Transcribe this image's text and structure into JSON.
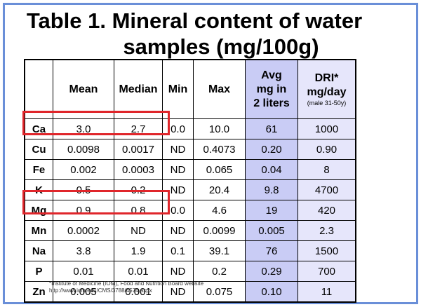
{
  "title": {
    "line1": "Table 1. Mineral content of water",
    "line2": "samples (mg/100g)"
  },
  "table": {
    "headers": [
      "",
      "Mean",
      "Median",
      "Min",
      "Max",
      "Avg mg in 2 liters",
      "DRI* mg/day"
    ],
    "avg_header": {
      "l1": "Avg",
      "l2": "mg in",
      "l3": "2 liters"
    },
    "dri_header": {
      "l1": "DRI*",
      "l2": "mg/day",
      "l3": "(male 31-50y)"
    },
    "rows": [
      {
        "el": "Ca",
        "mean": "3.0",
        "median": "2.7",
        "min": "0.0",
        "max": "10.0",
        "avg": "61",
        "dri": "1000"
      },
      {
        "el": "Cu",
        "mean": "0.0098",
        "median": "0.0017",
        "min": "ND",
        "max": "0.4073",
        "avg": "0.20",
        "dri": "0.90"
      },
      {
        "el": "Fe",
        "mean": "0.002",
        "median": "0.0003",
        "min": "ND",
        "max": "0.065",
        "avg": "0.04",
        "dri": "8"
      },
      {
        "el": "K",
        "mean": "0.5",
        "median": "0.2",
        "min": "ND",
        "max": "20.4",
        "avg": "9.8",
        "dri": "4700"
      },
      {
        "el": "Mg",
        "mean": "0.9",
        "median": "0.8",
        "min": "0.0",
        "max": "4.6",
        "avg": "19",
        "dri": "420"
      },
      {
        "el": "Mn",
        "mean": "0.0002",
        "median": "ND",
        "min": "ND",
        "max": "0.0099",
        "avg": "0.005",
        "dri": "2.3"
      },
      {
        "el": "Na",
        "mean": "3.8",
        "median": "1.9",
        "min": "0.1",
        "max": "39.1",
        "avg": "76",
        "dri": "1500"
      },
      {
        "el": "P",
        "mean": "0.01",
        "median": "0.01",
        "min": "ND",
        "max": "0.2",
        "avg": "0.29",
        "dri": "700"
      },
      {
        "el": "Zn",
        "mean": "0.005",
        "median": "0.001",
        "min": "ND",
        "max": "0.075",
        "avg": "0.10",
        "dri": "11"
      }
    ]
  },
  "footnote": {
    "line1": "*Institute of Medicine (IOM), Food and Nutrition Board website",
    "line2": "http://www.iom.edu/CMS/3788/4574.aspx"
  },
  "colors": {
    "highlight": "#e0262b",
    "avg_column": "#c9ccf5",
    "dri_column": "#e6e6fb",
    "frame": "#6a8fd8"
  }
}
